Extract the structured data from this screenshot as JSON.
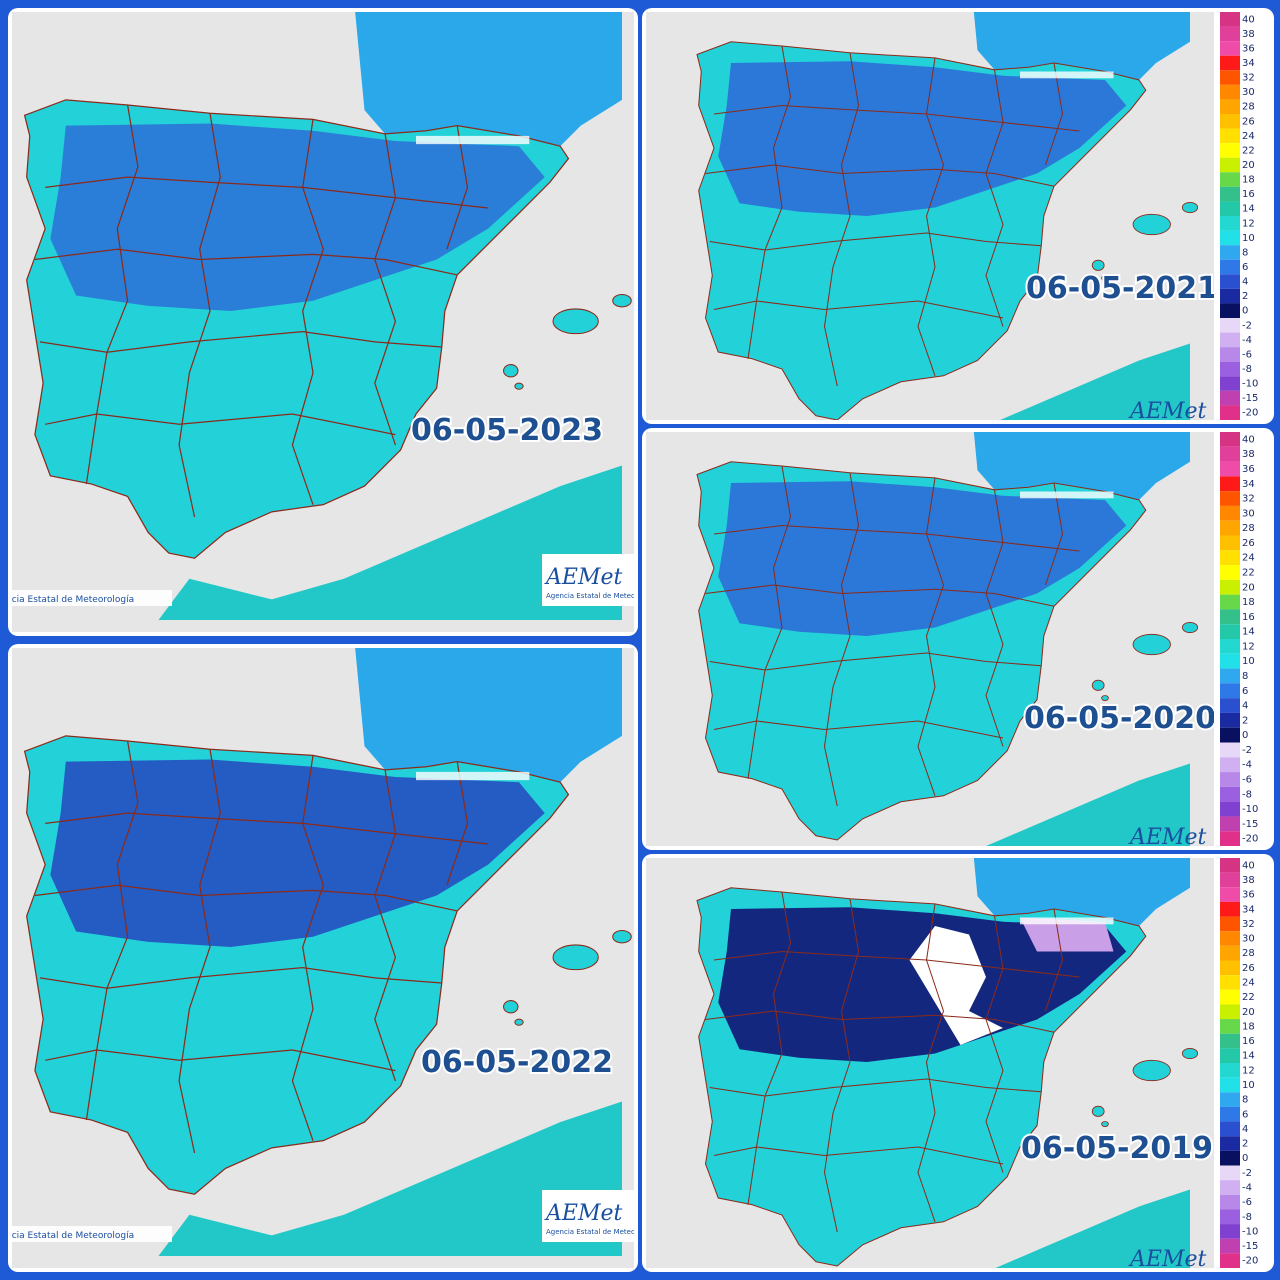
{
  "panels": [
    {
      "date": "06-05-2023",
      "credit": "ncia Estatal de Meteorología",
      "logo": "AEMet",
      "logo_caption": "Agencia Estatal de Meteorología"
    },
    {
      "date": "06-05-2022",
      "credit": "ncia Estatal de Meteorología",
      "logo": "AEMet",
      "logo_caption": "Agencia Estatal de Meteorología"
    },
    {
      "date": "06-05-2021",
      "logo": "AEMet",
      "legend": true
    },
    {
      "date": "06-05-2020",
      "logo": "AEMet",
      "legend": true
    },
    {
      "date": "06-05-2019",
      "logo": "AEMet",
      "legend": true
    }
  ],
  "legend": {
    "values": [
      40,
      38,
      36,
      34,
      32,
      30,
      28,
      26,
      24,
      22,
      20,
      18,
      16,
      14,
      12,
      10,
      8,
      6,
      4,
      2,
      0,
      -2,
      -4,
      -6,
      -8,
      -10,
      -15,
      -20
    ],
    "colors": [
      "#d63384",
      "#e0409a",
      "#ee4ca8",
      "#ff1a1a",
      "#ff5500",
      "#ff8800",
      "#ffa500",
      "#ffc000",
      "#ffe000",
      "#ffff00",
      "#c8f000",
      "#66d84a",
      "#33c08a",
      "#22c8a8",
      "#22d8d0",
      "#22e0e8",
      "#2fa8f0",
      "#2f78e8",
      "#2a50d0",
      "#1a2aa0",
      "#0a1060",
      "#e8d8f8",
      "#d0b0f0",
      "#b888e8",
      "#9a60e0",
      "#8040d0",
      "#c040b0",
      "#e0308a"
    ]
  }
}
